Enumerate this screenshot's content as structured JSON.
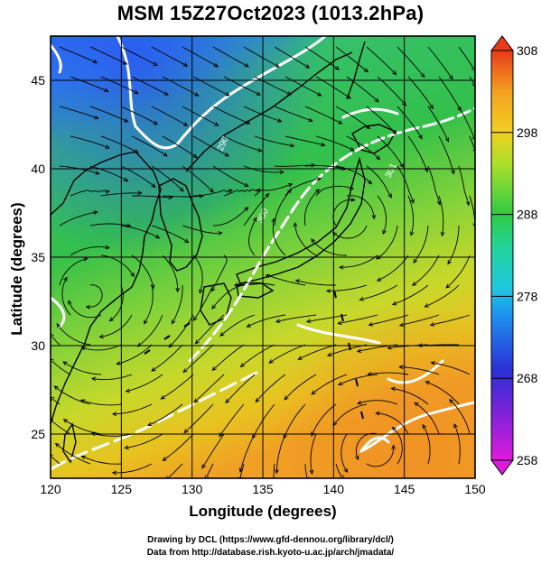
{
  "title": "MSM 15Z27Oct2023 (1013.2hPa)",
  "x_axis": {
    "label": "Longitude (degrees)",
    "range": [
      120,
      150
    ],
    "ticks": [
      "120",
      "125",
      "130",
      "135",
      "140",
      "145",
      "150"
    ]
  },
  "y_axis": {
    "label": "Latitude  (degrees)",
    "range": [
      22.5,
      47.5
    ],
    "ticks": [
      "25",
      "30",
      "35",
      "40",
      "45"
    ]
  },
  "colorbar": {
    "range": [
      258,
      308
    ],
    "labels": [
      "258",
      "268",
      "278",
      "288",
      "298",
      "308"
    ],
    "colors": [
      "#e01adc",
      "#3a2bd6",
      "#1fb0f0",
      "#22d4a8",
      "#2fcb45",
      "#a8e02a",
      "#f0d020",
      "#f5a020",
      "#e83a1a"
    ]
  },
  "contour_labels": [
    "290",
    "300",
    "301"
  ],
  "field_colors": {
    "cold_north": "#2f6df0",
    "mid_green": "#33c04a",
    "warm_south": "#e8c320",
    "hot_southeast": "#f09a24",
    "land_outline": "#000000",
    "contour": "#ffffff",
    "streamline": "#000000"
  },
  "credits": [
    "Drawing by DCL (https://www.gfd-dennou.org/library/dcl/)",
    "Data from http://database.rish.kyoto-u.ac.jp/arch/jmadata/"
  ]
}
